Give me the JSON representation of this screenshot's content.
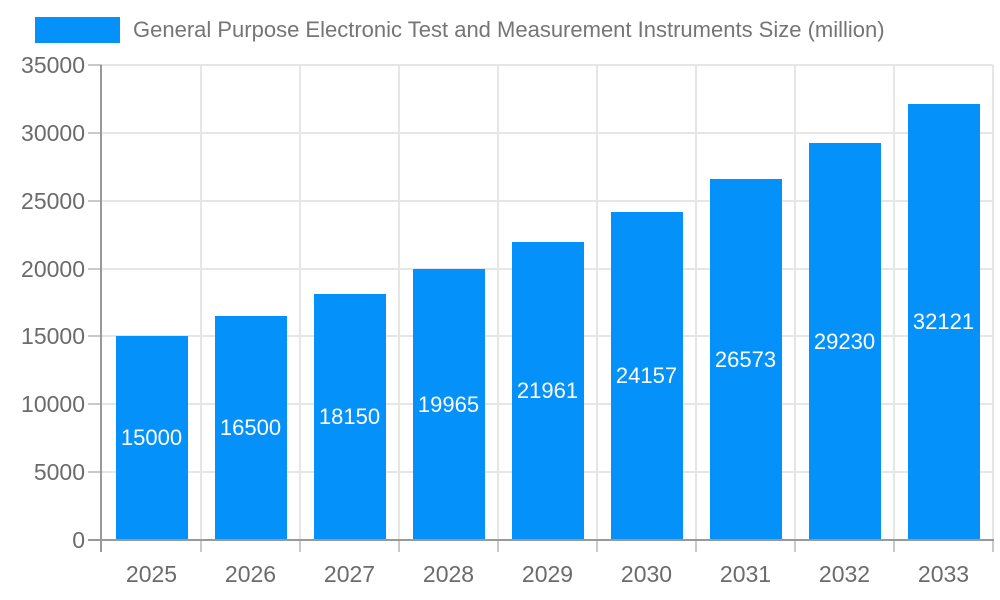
{
  "chart_data": {
    "type": "bar",
    "title": "General Purpose Electronic Test and Measurement Instruments Size (million)",
    "legend_entries": [
      "General Purpose Electronic Test and Measurement Instruments Size (million)"
    ],
    "legend_position": "top-left",
    "categories": [
      "2025",
      "2026",
      "2027",
      "2028",
      "2029",
      "2030",
      "2031",
      "2032",
      "2033"
    ],
    "values": [
      15000,
      16500,
      18150,
      19965,
      21961,
      24157,
      26573,
      29230,
      32121
    ],
    "bar_labels": [
      "15000",
      "16500",
      "18150",
      "19965",
      "21961",
      "24157",
      "26573",
      "29230",
      "32121"
    ],
    "xlabel": "",
    "ylabel": "",
    "ylim": [
      0,
      35000
    ],
    "yticks": [
      0,
      5000,
      10000,
      15000,
      20000,
      25000,
      30000,
      35000
    ],
    "grid": true,
    "colors": {
      "bar": "#0591fa",
      "bar_label": "#ffffff",
      "axis": "#999999",
      "gridline": "#e6e6e6",
      "tick": "#c9c9c9",
      "tick_label": "#6b6b6b",
      "legend_text": "#757575",
      "background": "#ffffff"
    }
  }
}
